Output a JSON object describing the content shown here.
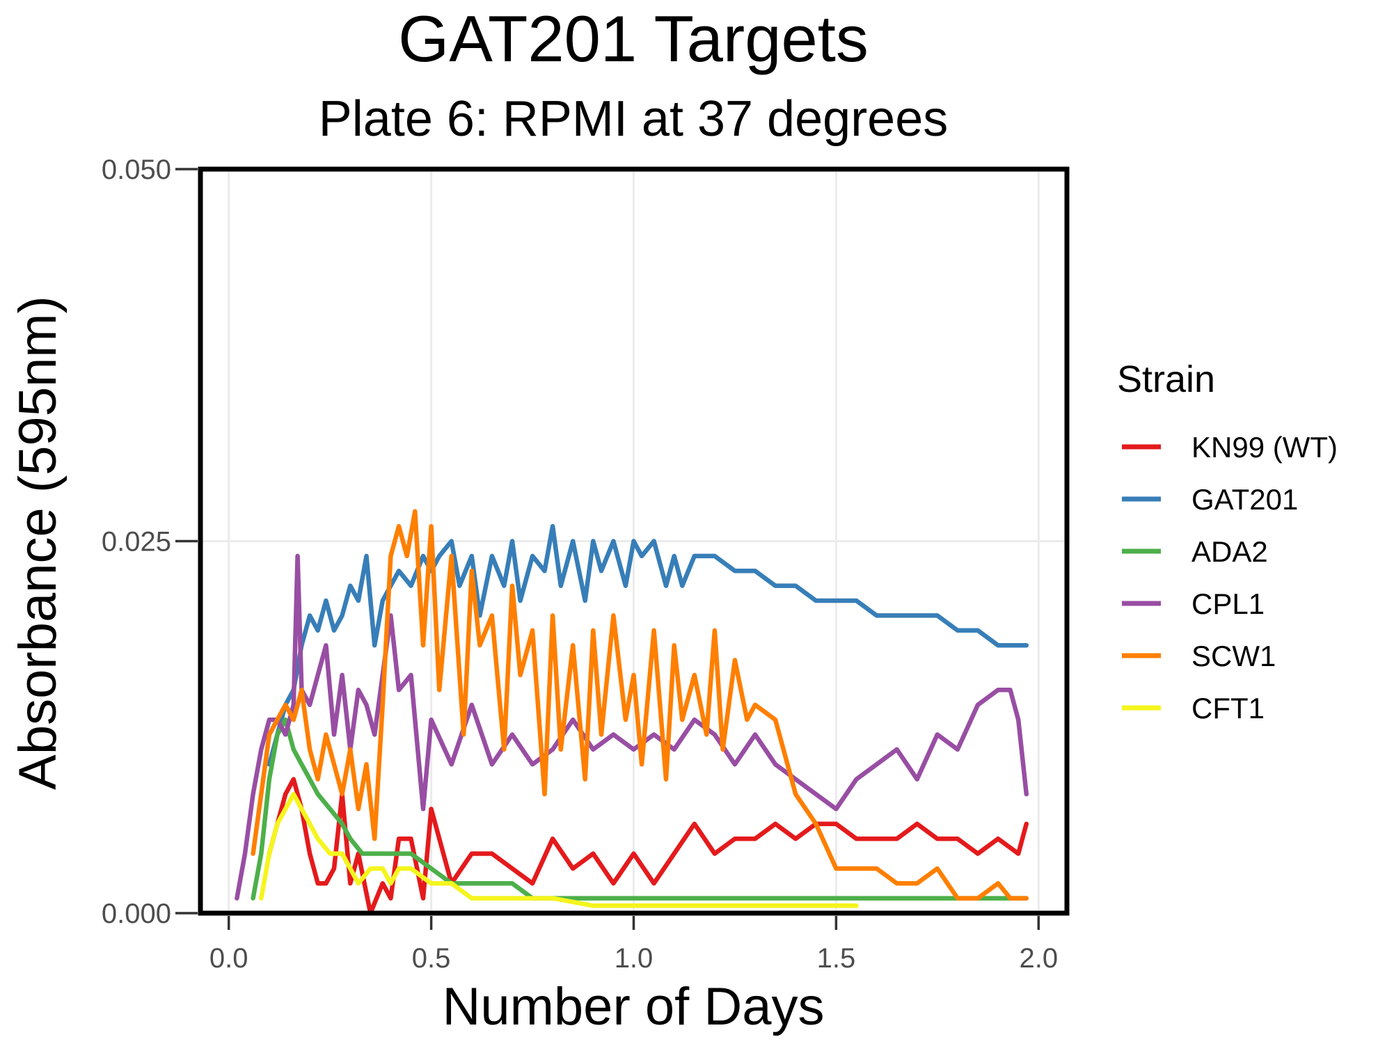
{
  "chart_data": {
    "type": "line",
    "title": "GAT201 Targets",
    "subtitle": "Plate 6: RPMI at 37 degrees",
    "xlabel": "Number of Days",
    "ylabel": "Absorbance (595nm)",
    "xlim": [
      -0.07,
      2.07
    ],
    "ylim": [
      0,
      0.05
    ],
    "x_ticks": [
      {
        "value": 0.0,
        "label": "0.0"
      },
      {
        "value": 0.5,
        "label": "0.5"
      },
      {
        "value": 1.0,
        "label": "1.0"
      },
      {
        "value": 1.5,
        "label": "1.5"
      },
      {
        "value": 2.0,
        "label": "2.0"
      }
    ],
    "y_ticks": [
      {
        "value": 0.0,
        "label": "0.000"
      },
      {
        "value": 0.025,
        "label": "0.025"
      },
      {
        "value": 0.05,
        "label": "0.050"
      }
    ],
    "grid": true,
    "legend": {
      "title": "Strain",
      "position": "right"
    },
    "series": [
      {
        "name": "KN99 (WT)",
        "color": "#e41a1c",
        "x": [
          0.1,
          0.12,
          0.14,
          0.16,
          0.18,
          0.2,
          0.22,
          0.24,
          0.26,
          0.28,
          0.3,
          0.32,
          0.35,
          0.38,
          0.4,
          0.42,
          0.45,
          0.48,
          0.5,
          0.55,
          0.6,
          0.65,
          0.7,
          0.75,
          0.8,
          0.85,
          0.9,
          0.95,
          1.0,
          1.05,
          1.1,
          1.15,
          1.2,
          1.25,
          1.3,
          1.35,
          1.4,
          1.45,
          1.5,
          1.55,
          1.6,
          1.65,
          1.7,
          1.75,
          1.8,
          1.85,
          1.9,
          1.95,
          1.97
        ],
        "y": [
          0.004,
          0.006,
          0.008,
          0.009,
          0.007,
          0.004,
          0.002,
          0.002,
          0.003,
          0.008,
          0.002,
          0.004,
          0.0,
          0.002,
          0.001,
          0.005,
          0.005,
          0.001,
          0.007,
          0.002,
          0.004,
          0.004,
          0.003,
          0.002,
          0.005,
          0.003,
          0.004,
          0.002,
          0.004,
          0.002,
          0.004,
          0.006,
          0.004,
          0.005,
          0.005,
          0.006,
          0.005,
          0.006,
          0.006,
          0.005,
          0.005,
          0.005,
          0.006,
          0.005,
          0.005,
          0.004,
          0.005,
          0.004,
          0.006
        ]
      },
      {
        "name": "GAT201",
        "color": "#377eb8",
        "x": [
          0.1,
          0.12,
          0.14,
          0.16,
          0.18,
          0.2,
          0.22,
          0.24,
          0.26,
          0.28,
          0.3,
          0.32,
          0.34,
          0.36,
          0.38,
          0.4,
          0.42,
          0.45,
          0.48,
          0.5,
          0.52,
          0.55,
          0.57,
          0.6,
          0.62,
          0.65,
          0.68,
          0.7,
          0.72,
          0.75,
          0.78,
          0.8,
          0.82,
          0.85,
          0.88,
          0.9,
          0.92,
          0.95,
          0.98,
          1.0,
          1.02,
          1.05,
          1.08,
          1.1,
          1.12,
          1.15,
          1.18,
          1.2,
          1.25,
          1.3,
          1.35,
          1.4,
          1.45,
          1.5,
          1.55,
          1.6,
          1.65,
          1.7,
          1.75,
          1.8,
          1.85,
          1.9,
          1.95,
          1.97
        ],
        "y": [
          0.01,
          0.012,
          0.014,
          0.015,
          0.018,
          0.02,
          0.019,
          0.021,
          0.019,
          0.02,
          0.022,
          0.021,
          0.024,
          0.018,
          0.021,
          0.022,
          0.023,
          0.022,
          0.024,
          0.023,
          0.024,
          0.025,
          0.022,
          0.024,
          0.02,
          0.024,
          0.022,
          0.025,
          0.021,
          0.024,
          0.023,
          0.026,
          0.022,
          0.025,
          0.021,
          0.025,
          0.023,
          0.025,
          0.022,
          0.025,
          0.024,
          0.025,
          0.022,
          0.024,
          0.022,
          0.024,
          0.024,
          0.024,
          0.023,
          0.023,
          0.022,
          0.022,
          0.021,
          0.021,
          0.021,
          0.02,
          0.02,
          0.02,
          0.02,
          0.019,
          0.019,
          0.018,
          0.018,
          0.018
        ]
      },
      {
        "name": "ADA2",
        "color": "#4daf4a",
        "x": [
          0.06,
          0.08,
          0.1,
          0.12,
          0.14,
          0.16,
          0.18,
          0.2,
          0.22,
          0.25,
          0.28,
          0.3,
          0.33,
          0.36,
          0.4,
          0.45,
          0.5,
          0.55,
          0.6,
          0.65,
          0.7,
          0.75,
          0.8,
          0.85,
          0.9,
          0.95,
          1.0,
          1.05,
          1.1,
          1.15,
          1.2,
          1.3,
          1.4,
          1.5,
          1.6,
          1.7,
          1.8,
          1.9,
          1.97
        ],
        "y": [
          0.001,
          0.004,
          0.009,
          0.012,
          0.013,
          0.011,
          0.01,
          0.009,
          0.008,
          0.007,
          0.006,
          0.005,
          0.004,
          0.004,
          0.004,
          0.004,
          0.003,
          0.002,
          0.002,
          0.002,
          0.002,
          0.001,
          0.001,
          0.001,
          0.001,
          0.001,
          0.001,
          0.001,
          0.001,
          0.001,
          0.001,
          0.001,
          0.001,
          0.001,
          0.001,
          0.001,
          0.001,
          0.001,
          0.001
        ]
      },
      {
        "name": "CPL1",
        "color": "#984ea3",
        "x": [
          0.02,
          0.04,
          0.06,
          0.08,
          0.1,
          0.12,
          0.14,
          0.16,
          0.17,
          0.18,
          0.2,
          0.22,
          0.24,
          0.26,
          0.28,
          0.3,
          0.32,
          0.34,
          0.36,
          0.38,
          0.4,
          0.42,
          0.45,
          0.48,
          0.5,
          0.55,
          0.6,
          0.65,
          0.7,
          0.75,
          0.8,
          0.85,
          0.9,
          0.95,
          1.0,
          1.05,
          1.1,
          1.15,
          1.2,
          1.25,
          1.3,
          1.35,
          1.4,
          1.45,
          1.5,
          1.55,
          1.6,
          1.65,
          1.7,
          1.75,
          1.8,
          1.85,
          1.9,
          1.93,
          1.95,
          1.97
        ],
        "y": [
          0.001,
          0.004,
          0.008,
          0.011,
          0.013,
          0.013,
          0.012,
          0.014,
          0.024,
          0.015,
          0.014,
          0.016,
          0.018,
          0.012,
          0.016,
          0.011,
          0.015,
          0.014,
          0.012,
          0.016,
          0.02,
          0.015,
          0.016,
          0.007,
          0.013,
          0.01,
          0.014,
          0.01,
          0.012,
          0.01,
          0.011,
          0.013,
          0.011,
          0.012,
          0.011,
          0.012,
          0.011,
          0.013,
          0.012,
          0.01,
          0.012,
          0.01,
          0.009,
          0.008,
          0.007,
          0.009,
          0.01,
          0.011,
          0.009,
          0.012,
          0.011,
          0.014,
          0.015,
          0.015,
          0.013,
          0.008
        ]
      },
      {
        "name": "SCW1",
        "color": "#ff7f00",
        "x": [
          0.06,
          0.08,
          0.1,
          0.12,
          0.14,
          0.16,
          0.18,
          0.2,
          0.22,
          0.24,
          0.26,
          0.28,
          0.3,
          0.32,
          0.34,
          0.36,
          0.38,
          0.4,
          0.42,
          0.44,
          0.46,
          0.48,
          0.5,
          0.52,
          0.55,
          0.58,
          0.6,
          0.62,
          0.65,
          0.68,
          0.7,
          0.72,
          0.75,
          0.78,
          0.8,
          0.82,
          0.85,
          0.88,
          0.9,
          0.92,
          0.95,
          0.98,
          1.0,
          1.02,
          1.05,
          1.08,
          1.1,
          1.12,
          1.15,
          1.18,
          1.2,
          1.22,
          1.25,
          1.28,
          1.3,
          1.35,
          1.4,
          1.45,
          1.5,
          1.55,
          1.6,
          1.65,
          1.7,
          1.75,
          1.8,
          1.85,
          1.9,
          1.93,
          1.95,
          1.97
        ],
        "y": [
          0.004,
          0.008,
          0.012,
          0.013,
          0.014,
          0.013,
          0.015,
          0.011,
          0.009,
          0.012,
          0.01,
          0.008,
          0.011,
          0.007,
          0.01,
          0.005,
          0.014,
          0.024,
          0.026,
          0.024,
          0.027,
          0.018,
          0.026,
          0.015,
          0.024,
          0.012,
          0.023,
          0.018,
          0.02,
          0.011,
          0.022,
          0.016,
          0.019,
          0.008,
          0.02,
          0.011,
          0.018,
          0.009,
          0.019,
          0.012,
          0.02,
          0.013,
          0.016,
          0.01,
          0.019,
          0.009,
          0.018,
          0.013,
          0.016,
          0.012,
          0.019,
          0.011,
          0.017,
          0.013,
          0.014,
          0.013,
          0.008,
          0.006,
          0.003,
          0.003,
          0.003,
          0.002,
          0.002,
          0.003,
          0.001,
          0.001,
          0.002,
          0.001,
          0.001,
          0.001
        ]
      },
      {
        "name": "CFT1",
        "color": "#f5f51d",
        "x": [
          0.08,
          0.1,
          0.12,
          0.14,
          0.16,
          0.18,
          0.2,
          0.22,
          0.25,
          0.28,
          0.3,
          0.32,
          0.35,
          0.38,
          0.4,
          0.42,
          0.45,
          0.5,
          0.55,
          0.6,
          0.65,
          0.7,
          0.75,
          0.8,
          0.9,
          1.0,
          1.1,
          1.2,
          1.3,
          1.4,
          1.5,
          1.55
        ],
        "y": [
          0.001,
          0.004,
          0.006,
          0.007,
          0.008,
          0.007,
          0.006,
          0.005,
          0.004,
          0.004,
          0.003,
          0.002,
          0.003,
          0.003,
          0.002,
          0.003,
          0.003,
          0.002,
          0.002,
          0.001,
          0.001,
          0.001,
          0.001,
          0.001,
          0.0005,
          0.0005,
          0.0005,
          0.0005,
          0.0005,
          0.0005,
          0.0005,
          0.0005
        ]
      }
    ]
  }
}
